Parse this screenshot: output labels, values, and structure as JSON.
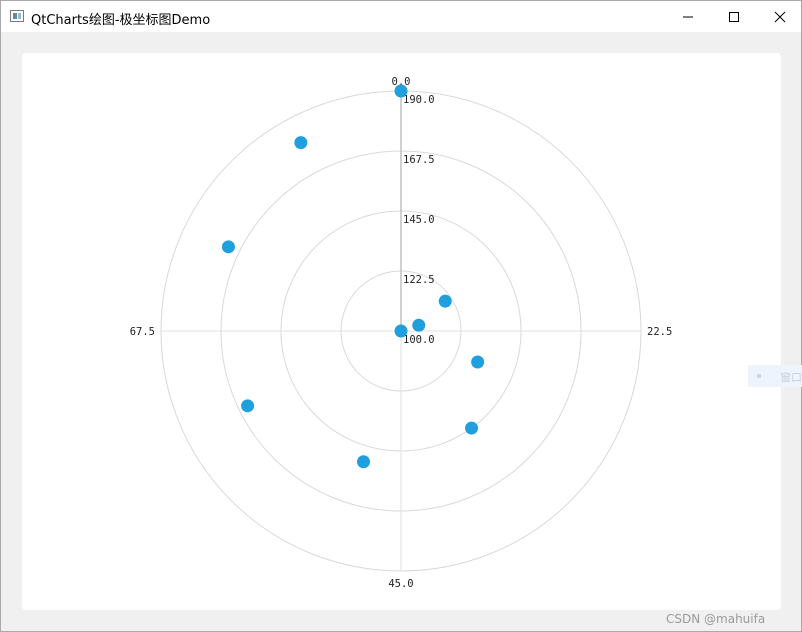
{
  "window": {
    "title": "QtCharts绘图-极坐标图Demo",
    "minimize_icon": "minimize-icon",
    "maximize_icon": "maximize-icon",
    "close_icon": "close-icon"
  },
  "side_widget": {
    "label": "窗口"
  },
  "watermark": "CSDN @mahuifa",
  "chart_data": {
    "type": "scatter",
    "coordinate_system": "polar",
    "angular_axis": {
      "range": [
        0,
        90
      ],
      "direction": "clockwise",
      "zero_at": "top",
      "tick_values": [
        0,
        22.5,
        45,
        67.5
      ],
      "tick_labels": [
        "0.0",
        "22.5",
        "45.0",
        "67.5"
      ]
    },
    "radial_axis": {
      "range": [
        100,
        190
      ],
      "tick_values": [
        100,
        122.5,
        145,
        167.5,
        190
      ],
      "tick_labels": [
        "100.0",
        "122.5",
        "145.0",
        "167.5",
        "190.0"
      ]
    },
    "grid": true,
    "legend": "none",
    "marker_color": "#209fdf",
    "series": [
      {
        "points": [
          {
            "angle": 0,
            "radius": 100
          },
          {
            "angle": 18,
            "radius": 107
          },
          {
            "angle": 14,
            "radius": 120
          },
          {
            "angle": 28,
            "radius": 131
          },
          {
            "angle": 36,
            "radius": 145
          },
          {
            "angle": 49,
            "radius": 151
          },
          {
            "angle": 61,
            "radius": 164
          },
          {
            "angle": 74,
            "radius": 172
          },
          {
            "angle": 83,
            "radius": 180
          },
          {
            "angle": 90,
            "radius": 190
          }
        ]
      }
    ]
  }
}
